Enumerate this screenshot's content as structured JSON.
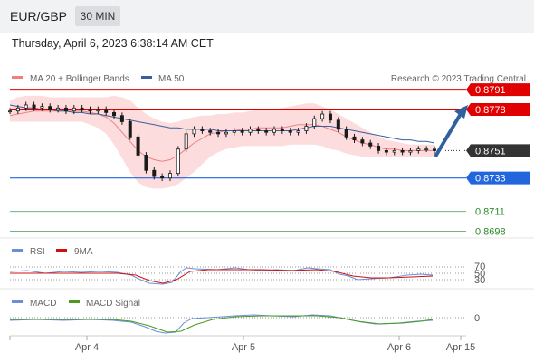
{
  "header": {
    "pair": "EUR/GBP",
    "timeframe": "30 MIN",
    "datetime": "Thursday, April 6, 2023 6:38:14 AM CET"
  },
  "legend": {
    "ma20_label": "MA 20 + Bollinger Bands",
    "ma50_label": "MA 50",
    "credit": "Research © 2023 Trading Central",
    "ma20_color": "#f08080",
    "ma50_color": "#3a5fa0"
  },
  "rsi_panel": {
    "rsi_label": "RSI",
    "ma_label": "9MA",
    "rsi_color": "#6a8fd8",
    "ma_color": "#d01010"
  },
  "macd_panel": {
    "macd_label": "MACD",
    "signal_label": "MACD Signal",
    "macd_color": "#6a8fd8",
    "signal_color": "#4a9a20"
  },
  "chart_data": {
    "type": "line",
    "ylim": [
      0.869,
      0.88
    ],
    "current_price": "0.8751",
    "levels": [
      {
        "label": "0.8791",
        "value": 0.8791,
        "color": "#e00000",
        "style": "solid-badge"
      },
      {
        "label": "0.8778",
        "value": 0.8778,
        "color": "#e00000",
        "style": "solid-badge"
      },
      {
        "label": "0.8751",
        "value": 0.8751,
        "color": "#333333",
        "style": "dotted-badge"
      },
      {
        "label": "0.8733",
        "value": 0.8733,
        "color": "#2266dd",
        "style": "solid-badge"
      },
      {
        "label": "0.8711",
        "value": 0.8711,
        "color": "#2a8a2a",
        "style": "text"
      },
      {
        "label": "0.8698",
        "value": 0.8698,
        "color": "#2a8a2a",
        "style": "text"
      }
    ],
    "x_ticks": [
      "Apr 4",
      "Apr 5",
      "Apr 6",
      "Apr 15"
    ],
    "rsi_levels": [
      "70",
      "50",
      "30"
    ],
    "macd_levels": [
      "0"
    ],
    "price": [
      0.8777,
      0.8779,
      0.8781,
      0.8779,
      0.878,
      0.8778,
      0.8779,
      0.8777,
      0.8779,
      0.8778,
      0.8777,
      0.8778,
      0.8776,
      0.8774,
      0.877,
      0.876,
      0.8748,
      0.8738,
      0.8734,
      0.8733,
      0.8736,
      0.8752,
      0.8762,
      0.8765,
      0.8764,
      0.8763,
      0.8762,
      0.8763,
      0.8764,
      0.8763,
      0.8765,
      0.8764,
      0.8763,
      0.8765,
      0.8764,
      0.8763,
      0.8764,
      0.8767,
      0.8772,
      0.8775,
      0.8771,
      0.8765,
      0.876,
      0.8758,
      0.8756,
      0.8754,
      0.8751,
      0.875,
      0.8751,
      0.875,
      0.8751,
      0.8752,
      0.8752,
      0.8751
    ],
    "ma20": [
      0.8774,
      0.8775,
      0.8776,
      0.8777,
      0.8777,
      0.8777,
      0.8777,
      0.8777,
      0.8777,
      0.8777,
      0.8776,
      0.8775,
      0.8773,
      0.8769,
      0.8763,
      0.8757,
      0.8751,
      0.8747,
      0.8745,
      0.8744,
      0.8745,
      0.8748,
      0.8752,
      0.8756,
      0.8759,
      0.8762,
      0.8763,
      0.8764,
      0.8764,
      0.8765,
      0.8765,
      0.8766,
      0.8766,
      0.8766,
      0.8766,
      0.8767,
      0.8768,
      0.8768,
      0.8768,
      0.8767,
      0.8765,
      0.8763,
      0.876,
      0.8758,
      0.8756,
      0.8755,
      0.8753,
      0.8752,
      0.8752,
      0.8751,
      0.8751,
      0.8751,
      0.8751,
      0.8751
    ],
    "ma50": [
      0.8781,
      0.878,
      0.8779,
      0.8779,
      0.8778,
      0.8778,
      0.8777,
      0.8777,
      0.8776,
      0.8776,
      0.8775,
      0.8775,
      0.8774,
      0.8773,
      0.8772,
      0.8771,
      0.877,
      0.8769,
      0.8768,
      0.8767,
      0.8766,
      0.8766,
      0.8765,
      0.8765,
      0.8765,
      0.8765,
      0.8764,
      0.8764,
      0.8764,
      0.8764,
      0.8764,
      0.8764,
      0.8764,
      0.8764,
      0.8764,
      0.8764,
      0.8765,
      0.8766,
      0.8767,
      0.8767,
      0.8767,
      0.8766,
      0.8765,
      0.8764,
      0.8763,
      0.8762,
      0.8761,
      0.876,
      0.8759,
      0.8758,
      0.8758,
      0.8757,
      0.8757,
      0.8756
    ],
    "bb_upper": [
      0.8784,
      0.8786,
      0.8787,
      0.8787,
      0.8787,
      0.8786,
      0.8786,
      0.8786,
      0.8786,
      0.8786,
      0.8786,
      0.8786,
      0.8786,
      0.8787,
      0.8786,
      0.8784,
      0.8779,
      0.8775,
      0.8772,
      0.877,
      0.8769,
      0.877,
      0.8772,
      0.8773,
      0.8774,
      0.8774,
      0.8775,
      0.8775,
      0.8776,
      0.8776,
      0.8777,
      0.8778,
      0.8778,
      0.8778,
      0.8779,
      0.878,
      0.8781,
      0.8782,
      0.8782,
      0.878,
      0.8778,
      0.8775,
      0.8772,
      0.8769,
      0.8766,
      0.8763,
      0.876,
      0.8758,
      0.8757,
      0.8756,
      0.8755,
      0.8755,
      0.8755,
      0.8755
    ],
    "bb_lower": [
      0.877,
      0.877,
      0.877,
      0.877,
      0.877,
      0.877,
      0.877,
      0.877,
      0.877,
      0.877,
      0.8768,
      0.8766,
      0.8762,
      0.8755,
      0.8746,
      0.8737,
      0.873,
      0.8727,
      0.8726,
      0.8726,
      0.8727,
      0.8729,
      0.8733,
      0.8737,
      0.8742,
      0.8747,
      0.875,
      0.8752,
      0.8753,
      0.8754,
      0.8754,
      0.8754,
      0.8754,
      0.8754,
      0.8754,
      0.8755,
      0.8755,
      0.8755,
      0.8755,
      0.8754,
      0.8752,
      0.8751,
      0.8749,
      0.8748,
      0.8747,
      0.8747,
      0.8747,
      0.8747,
      0.8747,
      0.8747,
      0.8747,
      0.8747,
      0.8747,
      0.8747
    ]
  }
}
